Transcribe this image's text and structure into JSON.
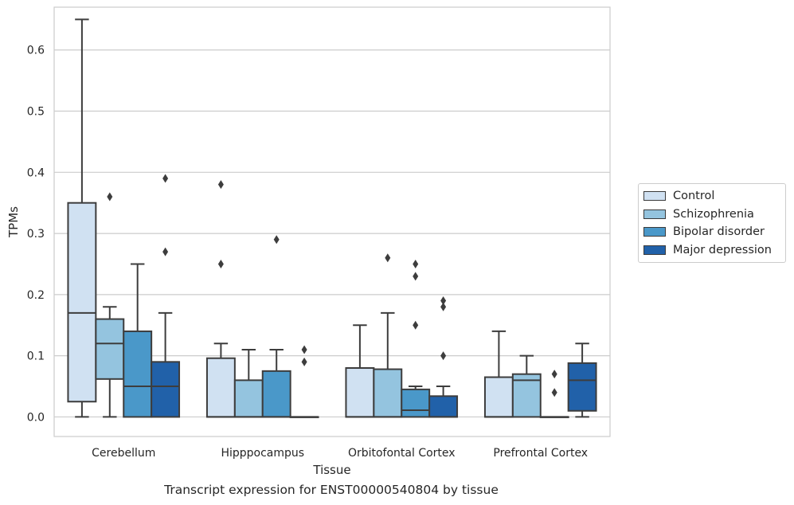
{
  "chart_data": {
    "type": "box",
    "xlabel": "Tissue",
    "ylabel": "TPMs",
    "caption": "Transcript expression for ENST00000540804 by tissue",
    "categories": [
      "Cerebellum",
      "Hipppocampus",
      "Orbitofontal Cortex",
      "Prefrontal Cortex"
    ],
    "ylim": [
      -0.032,
      0.67
    ],
    "yticks": [
      "0.0",
      "0.1",
      "0.2",
      "0.3",
      "0.4",
      "0.5",
      "0.6"
    ],
    "grid": "horizontal",
    "legend_position": "right",
    "series": [
      {
        "name": "Control",
        "color": "#d0e1f2",
        "boxes": [
          {
            "whislo": 0.0,
            "q1": 0.025,
            "med": 0.17,
            "q3": 0.35,
            "whishi": 0.65,
            "fliers": []
          },
          {
            "whislo": 0.0,
            "q1": 0.0,
            "med": 0.0,
            "q3": 0.096,
            "whishi": 0.12,
            "fliers": [
              0.25,
              0.38
            ]
          },
          {
            "whislo": 0.0,
            "q1": 0.0,
            "med": 0.0,
            "q3": 0.08,
            "whishi": 0.15,
            "fliers": []
          },
          {
            "whislo": 0.0,
            "q1": 0.0,
            "med": 0.0,
            "q3": 0.065,
            "whishi": 0.14,
            "fliers": []
          }
        ]
      },
      {
        "name": "Schizophrenia",
        "color": "#94c4df",
        "boxes": [
          {
            "whislo": 0.0,
            "q1": 0.062,
            "med": 0.12,
            "q3": 0.16,
            "whishi": 0.18,
            "fliers": [
              0.36
            ]
          },
          {
            "whislo": 0.0,
            "q1": 0.0,
            "med": 0.0,
            "q3": 0.06,
            "whishi": 0.11,
            "fliers": []
          },
          {
            "whislo": 0.0,
            "q1": 0.0,
            "med": 0.0,
            "q3": 0.078,
            "whishi": 0.17,
            "fliers": [
              0.26
            ]
          },
          {
            "whislo": 0.0,
            "q1": 0.0,
            "med": 0.06,
            "q3": 0.07,
            "whishi": 0.1,
            "fliers": []
          }
        ]
      },
      {
        "name": "Bipolar disorder",
        "color": "#4a98c9",
        "boxes": [
          {
            "whislo": 0.0,
            "q1": 0.0,
            "med": 0.05,
            "q3": 0.14,
            "whishi": 0.25,
            "fliers": []
          },
          {
            "whislo": 0.0,
            "q1": 0.0,
            "med": 0.0,
            "q3": 0.075,
            "whishi": 0.11,
            "fliers": [
              0.29
            ]
          },
          {
            "whislo": 0.0,
            "q1": 0.0,
            "med": 0.011,
            "q3": 0.045,
            "whishi": 0.05,
            "fliers": [
              0.15,
              0.23,
              0.25
            ]
          },
          {
            "whislo": 0.0,
            "q1": 0.0,
            "med": 0.0,
            "q3": 0.0,
            "whishi": 0.0,
            "fliers": [
              0.04,
              0.07
            ]
          }
        ]
      },
      {
        "name": "Major depression",
        "color": "#2161a9",
        "boxes": [
          {
            "whislo": 0.0,
            "q1": 0.0,
            "med": 0.05,
            "q3": 0.09,
            "whishi": 0.17,
            "fliers": [
              0.27,
              0.39
            ]
          },
          {
            "whislo": 0.0,
            "q1": 0.0,
            "med": 0.0,
            "q3": 0.0,
            "whishi": 0.0,
            "fliers": [
              0.09,
              0.11
            ]
          },
          {
            "whislo": 0.0,
            "q1": 0.0,
            "med": 0.0,
            "q3": 0.034,
            "whishi": 0.05,
            "fliers": [
              0.1,
              0.18,
              0.19
            ]
          },
          {
            "whislo": 0.0,
            "q1": 0.01,
            "med": 0.06,
            "q3": 0.088,
            "whishi": 0.12,
            "fliers": []
          }
        ]
      }
    ]
  }
}
